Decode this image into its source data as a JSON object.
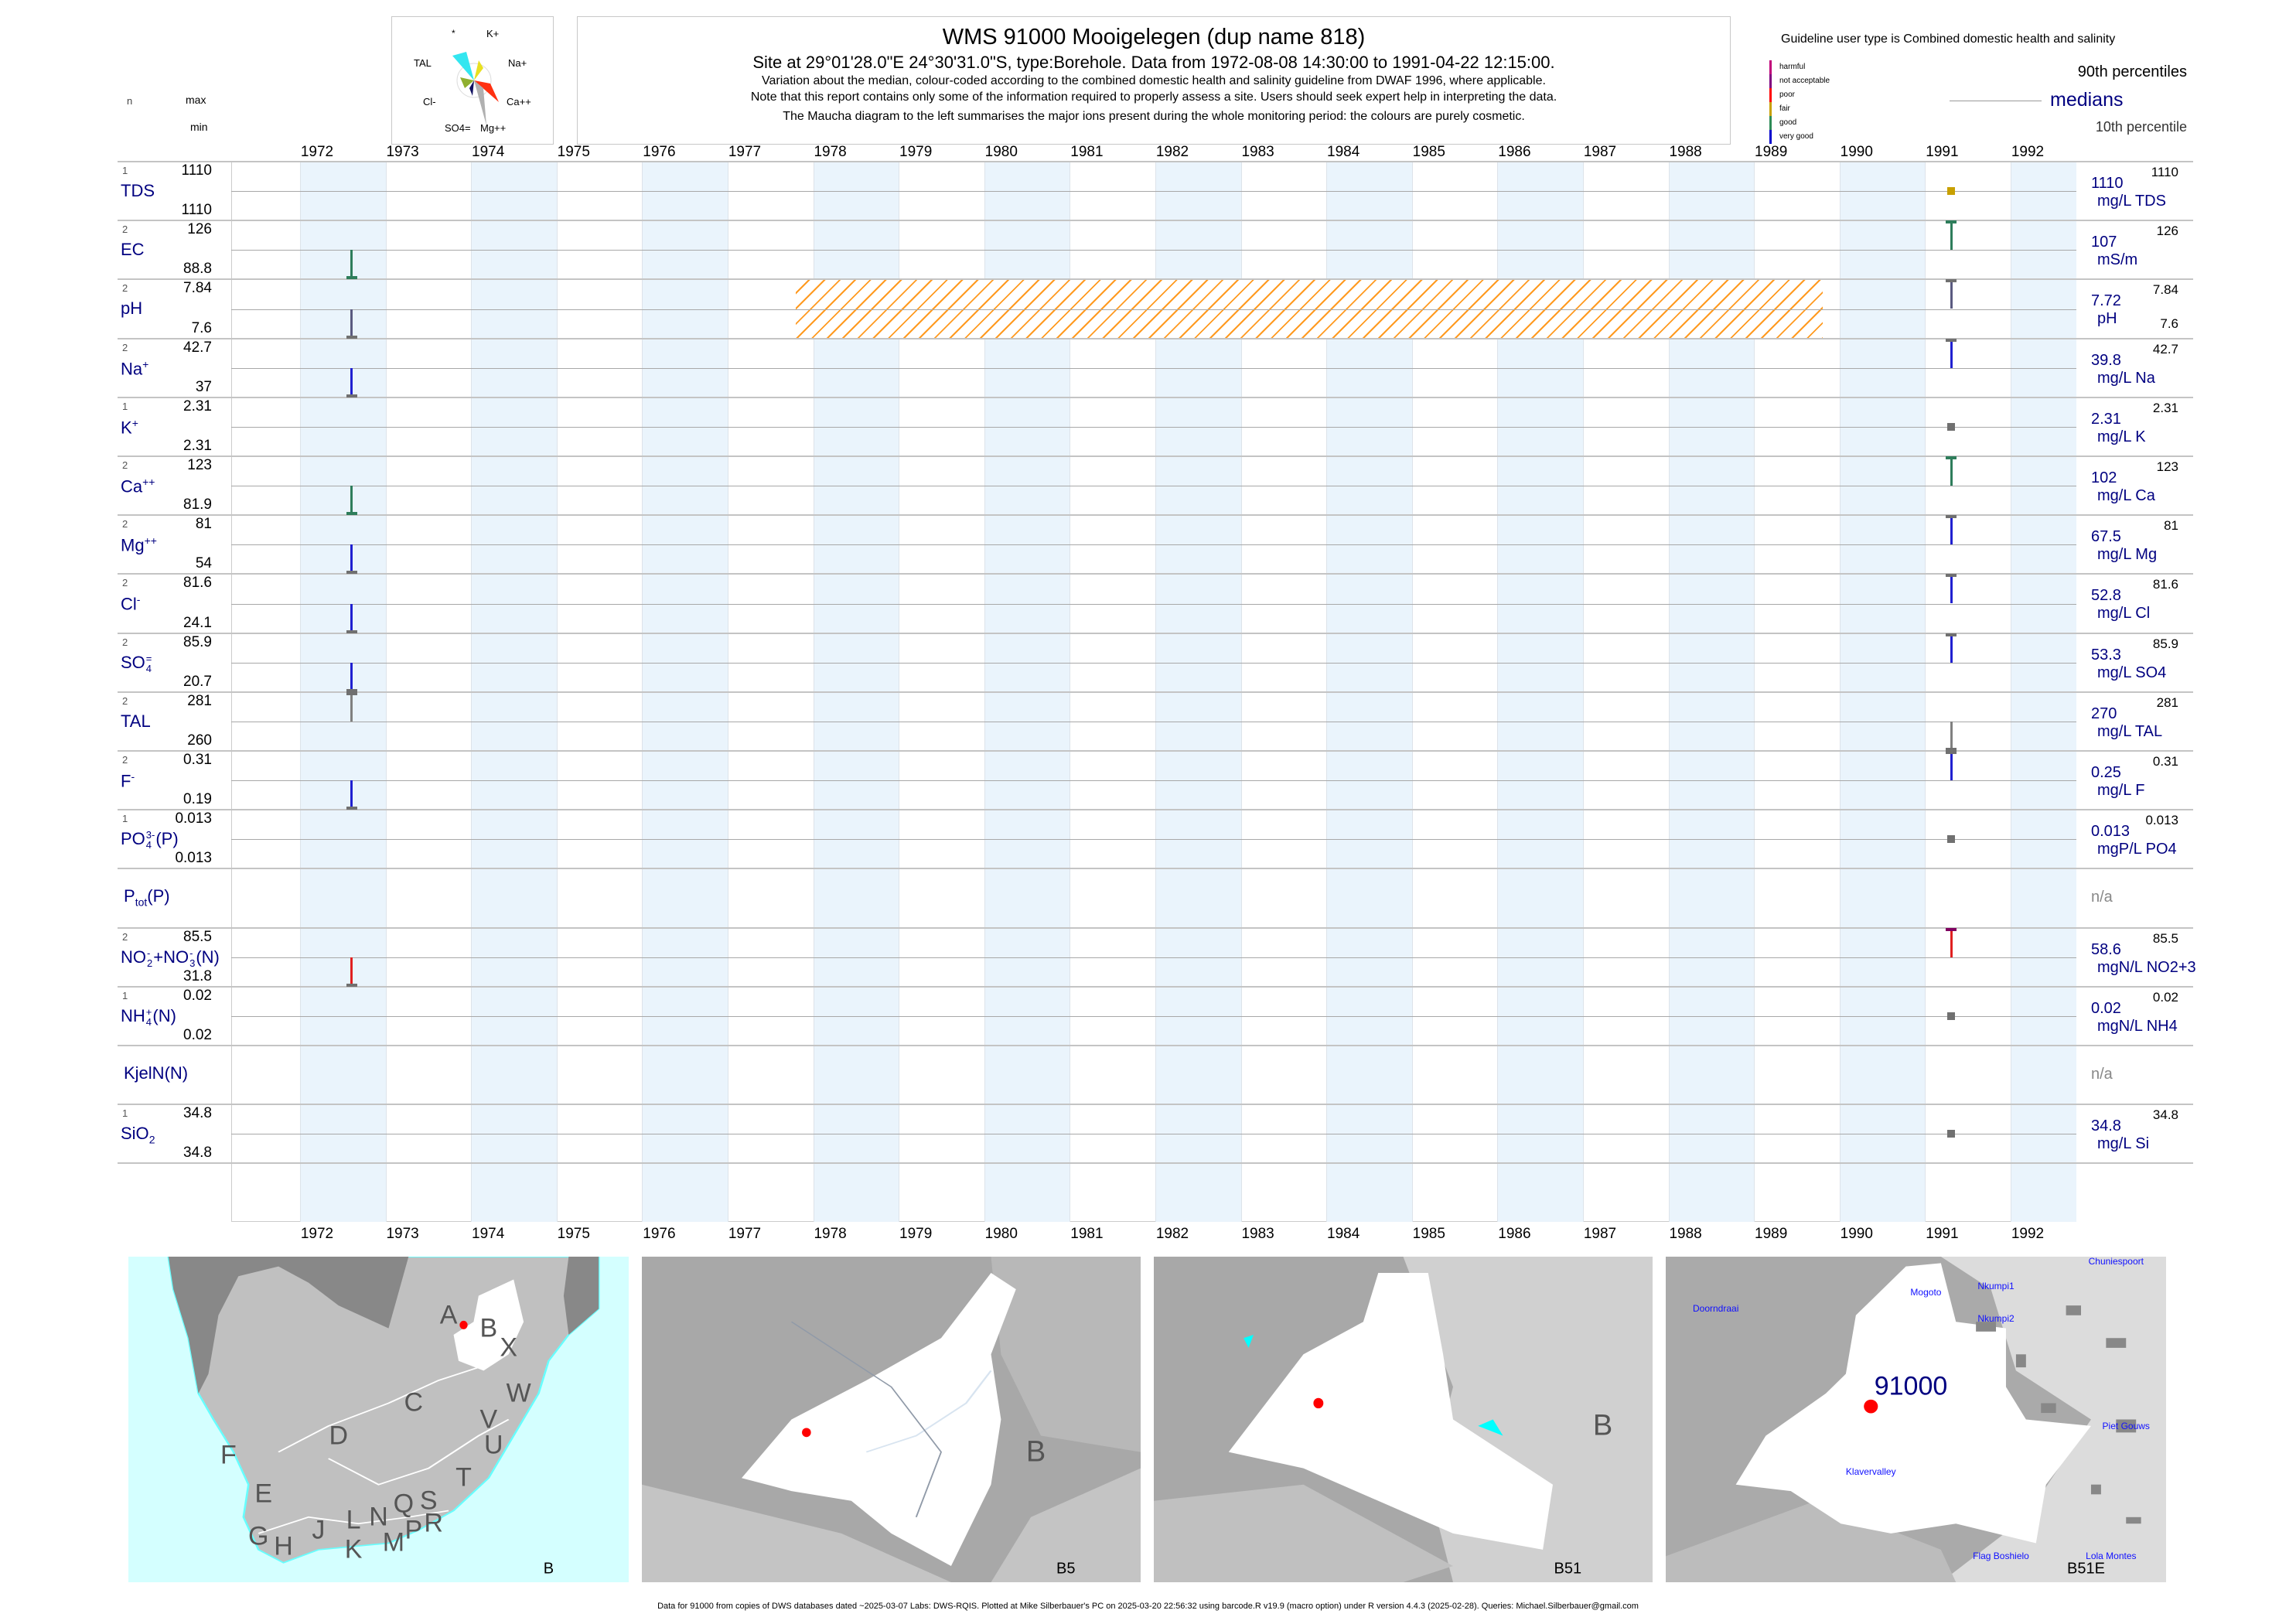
{
  "header": {
    "title": "WMS 91000  Mooigelegen (dup name 818)",
    "subtitle": "Site at 29°01'28.0\"E 24°30'31.0\"S, type:Borehole.  Data from 1972-08-08 14:30:00 to 1991-04-22 12:15:00.",
    "note1": "Variation about the median,  colour-coded according to the combined domestic health and salinity guideline from DWAF 1996, where applicable.",
    "note2": "Note that this report contains only some of the information required to properly assess a site. Users should seek expert help in interpreting the data.",
    "note3": "The Maucha diagram to the left summarises the major ions present during the whole monitoring period: the colours are purely cosmetic."
  },
  "maucha": {
    "labels": [
      "*",
      "K+",
      "TAL",
      "Na+",
      "Cl-",
      "Ca++",
      "SO4=",
      "Mg++"
    ],
    "colors": {
      "TAL": "#33e6f0",
      "Na": "#e8e020",
      "Ca": "#ff3010",
      "Mg": "#b0b0b0",
      "Cl": "#90b030",
      "SO4": "#101060"
    }
  },
  "guideline": {
    "title": "Guideline user type is Combined domestic health and salinity",
    "classes": [
      {
        "label": "harmful",
        "color": "#c0007a"
      },
      {
        "label": "not acceptable",
        "color": "#800080"
      },
      {
        "label": "poor",
        "color": "#ff0000"
      },
      {
        "label": "fair",
        "color": "#c8a000"
      },
      {
        "label": "good",
        "color": "#2e8b57"
      },
      {
        "label": "very good",
        "color": "#0000cc"
      }
    ]
  },
  "legend": {
    "p90": "90th percentiles",
    "median": "medians",
    "p10": "10th percentile"
  },
  "columns": {
    "n": "n",
    "max": "max",
    "min": "min"
  },
  "chart_data": {
    "type": "scatter",
    "xlabel": "",
    "x_range": [
      1971.2,
      1992.8
    ],
    "x_ticks": [
      "1972",
      "1973",
      "1974",
      "1975",
      "1976",
      "1977",
      "1978",
      "1979",
      "1980",
      "1981",
      "1982",
      "1983",
      "1984",
      "1985",
      "1986",
      "1987",
      "1988",
      "1989",
      "1990",
      "1991",
      "1992"
    ],
    "sample_dates": [
      "1972-08-08",
      "1991-04-22"
    ],
    "hatched_span": {
      "row": "pH",
      "from": 1977.8,
      "to": 1989.8,
      "color": "#ff9a20"
    },
    "rows": [
      {
        "id": "TDS",
        "label": [
          {
            "t": "TDS"
          }
        ],
        "n": "1",
        "max": "1110",
        "min": "1110",
        "median": "1110",
        "unit": "mg/L TDS",
        "p90": "1110",
        "points": [
          {
            "date": "1991-04-22",
            "value": 1110,
            "color": "#c8a000"
          }
        ]
      },
      {
        "id": "EC",
        "label": [
          {
            "t": "EC"
          }
        ],
        "n": "2",
        "max": "126",
        "min": "88.8",
        "median": "107",
        "unit": "mS/m",
        "p90": "126",
        "points": [
          {
            "date": "1972-08-08",
            "value": 88.8,
            "color": "#2e7d5b"
          },
          {
            "date": "1991-04-22",
            "value": 126,
            "color": "#2e7d5b"
          }
        ]
      },
      {
        "id": "pH",
        "label": [
          {
            "t": "pH"
          }
        ],
        "n": "2",
        "max": "7.84",
        "min": "7.6",
        "median": "7.72",
        "unit": "pH",
        "p90": "7.84",
        "p10": "7.6",
        "points": [
          {
            "date": "1972-08-08",
            "value": 7.6,
            "color": "#5a5a80"
          },
          {
            "date": "1991-04-22",
            "value": 7.84,
            "color": "#5a5a80"
          }
        ]
      },
      {
        "id": "Na",
        "label": [
          {
            "t": "Na"
          },
          {
            "sup": "+"
          }
        ],
        "n": "2",
        "max": "42.7",
        "min": "37",
        "median": "39.8",
        "unit": "mg/L Na",
        "p90": "42.7",
        "points": [
          {
            "date": "1972-08-08",
            "value": 37,
            "color": "#2020d0"
          },
          {
            "date": "1991-04-22",
            "value": 42.7,
            "color": "#2020d0"
          }
        ]
      },
      {
        "id": "K",
        "label": [
          {
            "t": "K"
          },
          {
            "sup": "+"
          }
        ],
        "n": "1",
        "max": "2.31",
        "min": "2.31",
        "median": "2.31",
        "unit": "mg/L K",
        "p90": "2.31",
        "points": [
          {
            "date": "1991-04-22",
            "value": 2.31,
            "color": "#707070"
          }
        ]
      },
      {
        "id": "Ca",
        "label": [
          {
            "t": "Ca"
          },
          {
            "sup": "++"
          }
        ],
        "n": "2",
        "max": "123",
        "min": "81.9",
        "median": "102",
        "unit": "mg/L Ca",
        "p90": "123",
        "points": [
          {
            "date": "1972-08-08",
            "value": 81.9,
            "color": "#2e7d5b"
          },
          {
            "date": "1991-04-22",
            "value": 123,
            "color": "#2e7d5b"
          }
        ]
      },
      {
        "id": "Mg",
        "label": [
          {
            "t": "Mg"
          },
          {
            "sup": "++"
          }
        ],
        "n": "2",
        "max": "81",
        "min": "54",
        "median": "67.5",
        "unit": "mg/L Mg",
        "p90": "81",
        "points": [
          {
            "date": "1972-08-08",
            "value": 54,
            "color": "#2020d0"
          },
          {
            "date": "1991-04-22",
            "value": 81,
            "color": "#2020d0"
          }
        ]
      },
      {
        "id": "Cl",
        "label": [
          {
            "t": "Cl"
          },
          {
            "sup": "-"
          }
        ],
        "n": "2",
        "max": "81.6",
        "min": "24.1",
        "median": "52.8",
        "unit": "mg/L Cl",
        "p90": "81.6",
        "points": [
          {
            "date": "1972-08-08",
            "value": 24.1,
            "color": "#2020d0"
          },
          {
            "date": "1991-04-22",
            "value": 81.6,
            "color": "#2020d0"
          }
        ]
      },
      {
        "id": "SO4",
        "label": [
          {
            "t": "SO"
          },
          {
            "sup": "=",
            "sub": "4"
          }
        ],
        "n": "2",
        "max": "85.9",
        "min": "20.7",
        "median": "53.3",
        "unit": "mg/L SO4",
        "p90": "85.9",
        "points": [
          {
            "date": "1972-08-08",
            "value": 20.7,
            "color": "#2020d0"
          },
          {
            "date": "1991-04-22",
            "value": 85.9,
            "color": "#2020d0"
          }
        ]
      },
      {
        "id": "TAL",
        "label": [
          {
            "t": "TAL"
          }
        ],
        "n": "2",
        "max": "281",
        "min": "260",
        "median": "270",
        "unit": "mg/L TAL",
        "p90": "281",
        "points": [
          {
            "date": "1972-08-08",
            "value": 281,
            "color": "#808080"
          },
          {
            "date": "1991-04-22",
            "value": 260,
            "color": "#808080"
          }
        ]
      },
      {
        "id": "F",
        "label": [
          {
            "t": "F"
          },
          {
            "sup": "-"
          }
        ],
        "n": "2",
        "max": "0.31",
        "min": "0.19",
        "median": "0.25",
        "unit": "mg/L F",
        "p90": "0.31",
        "points": [
          {
            "date": "1972-08-08",
            "value": 0.19,
            "color": "#2020d0"
          },
          {
            "date": "1991-04-22",
            "value": 0.31,
            "color": "#2020d0"
          }
        ]
      },
      {
        "id": "PO4",
        "label": [
          {
            "t": "PO"
          },
          {
            "sup": "3-",
            "sub": "4"
          },
          {
            "t": "(P)"
          }
        ],
        "n": "1",
        "max": "0.013",
        "min": "0.013",
        "median": "0.013",
        "unit": "mgP/L PO4",
        "p90": "0.013",
        "points": [
          {
            "date": "1991-04-22",
            "value": 0.013,
            "color": "#707070"
          }
        ]
      },
      {
        "id": "Ptot",
        "label": [
          {
            "t": "P"
          },
          {
            "sub": "tot"
          },
          {
            "t": "(P)"
          }
        ],
        "median": "n/a",
        "points": []
      },
      {
        "id": "NO23",
        "label": [
          {
            "t": "NO"
          },
          {
            "sup": "-",
            "sub": "2"
          },
          {
            "t": "+NO"
          },
          {
            "sup": "-",
            "sub": "3"
          },
          {
            "t": "(N)"
          }
        ],
        "n": "2",
        "max": "85.5",
        "min": "31.8",
        "median": "58.6",
        "unit": "mgN/L NO2+3",
        "p90": "85.5",
        "points": [
          {
            "date": "1972-08-08",
            "value": 31.8,
            "color": "#e02020"
          },
          {
            "date": "1991-04-22",
            "value": 85.5,
            "color": "#e02020"
          }
        ]
      },
      {
        "id": "NH4",
        "label": [
          {
            "t": "NH"
          },
          {
            "sup": "+",
            "sub": "4"
          },
          {
            "t": "(N)"
          }
        ],
        "n": "1",
        "max": "0.02",
        "min": "0.02",
        "median": "0.02",
        "unit": "mgN/L NH4",
        "p90": "0.02",
        "points": [
          {
            "date": "1991-04-22",
            "value": 0.02,
            "color": "#707070"
          }
        ]
      },
      {
        "id": "KjelN",
        "label": [
          {
            "t": "KjelN(N)"
          }
        ],
        "median": "n/a",
        "points": []
      },
      {
        "id": "SiO2",
        "label": [
          {
            "t": "SiO"
          },
          {
            "sub": "2"
          }
        ],
        "n": "1",
        "max": "34.8",
        "min": "34.8",
        "median": "34.8",
        "unit": "mg/L Si",
        "p90": "34.8",
        "points": [
          {
            "date": "1991-04-22",
            "value": 34.8,
            "color": "#707070"
          }
        ]
      }
    ]
  },
  "maps": {
    "panel1": {
      "label": "B",
      "regions": [
        "A",
        "B",
        "X",
        "W",
        "C",
        "V",
        "D",
        "U",
        "F",
        "T",
        "E",
        "S",
        "Q",
        "L",
        "N",
        "R",
        "J",
        "G",
        "P",
        "H",
        "M",
        "K"
      ]
    },
    "panel2": {
      "label": "B5",
      "region": "B"
    },
    "panel3": {
      "label": "B51",
      "region": "B"
    },
    "panel4": {
      "label": "B51E",
      "site": "91000",
      "places": [
        "Doorndraai",
        "Mogoto",
        "Nkumpi1",
        "Nkumpi2",
        "Chuniespoort",
        "Klavervalley",
        "Piet Gouws",
        "Flag Boshielo",
        "Lola Montes"
      ]
    }
  },
  "footer": "Data for 91000 from copies of DWS databases dated ~2025-03-07 Labs: DWS-RQIS. Plotted at Mike Silberbauer's PC on 2025-03-20 22:56:32 using barcode.R v19.9 (macro option) under R version 4.4.3 (2025-02-28). Queries: Michael.Silberbauer@gmail.com"
}
